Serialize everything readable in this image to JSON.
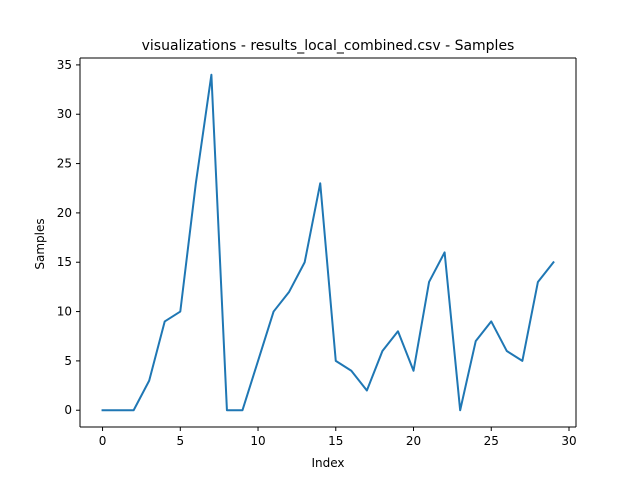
{
  "chart_data": {
    "type": "line",
    "title": "visualizations - results_local_combined.csv - Samples",
    "xlabel": "Index",
    "ylabel": "Samples",
    "xlim": [
      -1.45,
      30.45
    ],
    "ylim": [
      -1.7,
      35.7
    ],
    "xticks": [
      0,
      5,
      10,
      15,
      20,
      25,
      30
    ],
    "yticks": [
      0,
      5,
      10,
      15,
      20,
      25,
      30,
      35
    ],
    "grid": false,
    "series": [
      {
        "color": "#1f77b4",
        "x": [
          0,
          1,
          2,
          3,
          4,
          5,
          6,
          7,
          8,
          9,
          10,
          11,
          12,
          13,
          14,
          15,
          16,
          17,
          18,
          19,
          20,
          21,
          22,
          23,
          24,
          25,
          26,
          27,
          28,
          29
        ],
        "values": [
          0,
          0,
          0,
          3,
          9,
          10,
          23,
          34,
          0,
          0,
          5,
          10,
          12,
          15,
          23,
          5,
          4,
          2,
          6,
          8,
          4,
          13,
          16,
          0,
          7,
          9,
          6,
          5,
          13,
          15
        ]
      }
    ]
  }
}
